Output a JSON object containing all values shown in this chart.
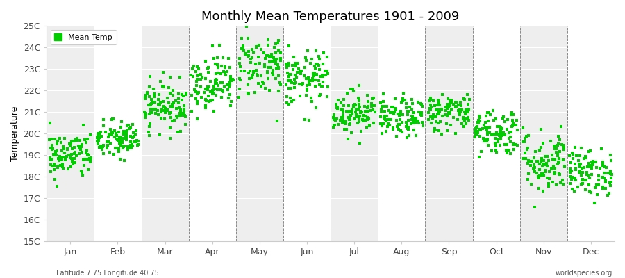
{
  "title": "Monthly Mean Temperatures 1901 - 2009",
  "ylabel": "Temperature",
  "ylim": [
    15,
    25
  ],
  "yticks": [
    15,
    16,
    17,
    18,
    19,
    20,
    21,
    22,
    23,
    24,
    25
  ],
  "ytick_labels": [
    "15C",
    "16C",
    "17C",
    "18C",
    "19C",
    "20C",
    "21C",
    "22C",
    "23C",
    "24C",
    "25C"
  ],
  "months": [
    "Jan",
    "Feb",
    "Mar",
    "Apr",
    "May",
    "Jun",
    "Jul",
    "Aug",
    "Sep",
    "Oct",
    "Nov",
    "Dec"
  ],
  "mean_temps": [
    19.0,
    19.7,
    21.3,
    22.4,
    23.2,
    22.5,
    21.0,
    20.7,
    21.0,
    20.1,
    18.7,
    18.2
  ],
  "std_devs": [
    0.55,
    0.45,
    0.55,
    0.65,
    0.75,
    0.65,
    0.5,
    0.45,
    0.45,
    0.55,
    0.75,
    0.55
  ],
  "n_years": 109,
  "marker_color": "#00cc00",
  "marker_size": 2.5,
  "bg_color": "#ffffff",
  "band_color": "#eeeeee",
  "legend_label": "Mean Temp",
  "subtitle_left": "Latitude 7.75 Longitude 40.75",
  "subtitle_right": "worldspecies.org",
  "seed": 42
}
